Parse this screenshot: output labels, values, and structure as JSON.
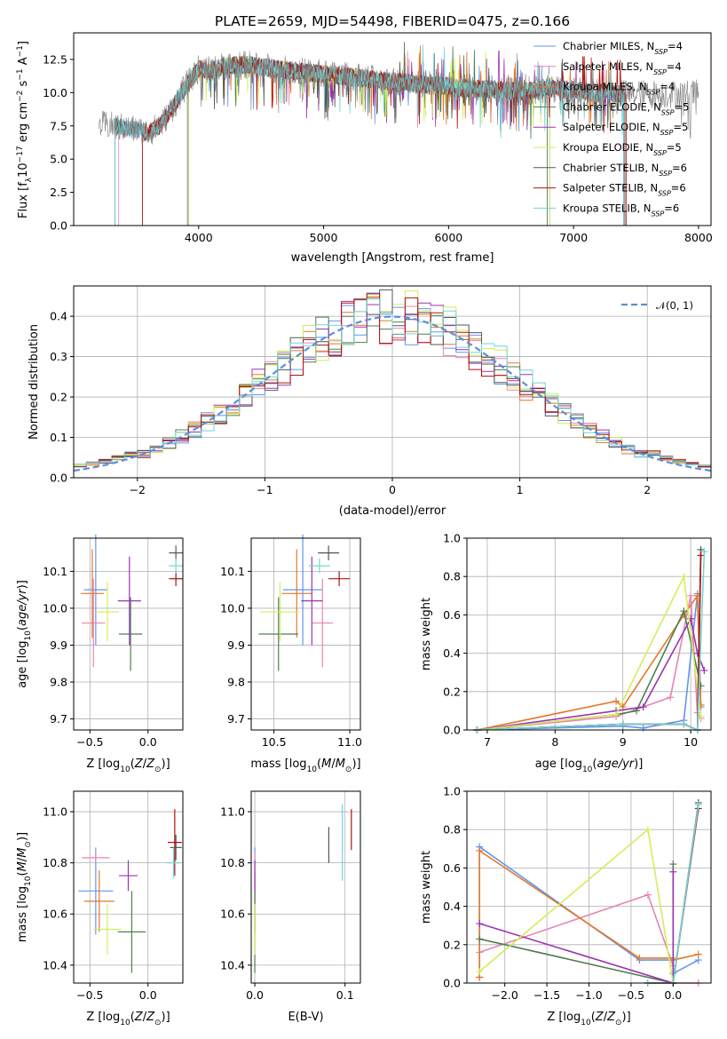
{
  "figure": {
    "title": "PLATE=2659, MJD=54498, FIBERID=0475, z=0.166"
  },
  "models": [
    {
      "name": "Chabrier MILES, N$_{SSP}$=4",
      "label": "Chabrier MILES, N",
      "sub": "SSP",
      "suffix": "=4",
      "color": "#6495ed"
    },
    {
      "name": "Salpeter MILES, N$_{SSP}$=4",
      "label": "Salpeter MILES, N",
      "sub": "SSP",
      "suffix": "=4",
      "color": "#e884b4"
    },
    {
      "name": "Kroupa MILES, N$_{SSP}$=4",
      "label": "Kroupa MILES, N",
      "sub": "SSP",
      "suffix": "=4",
      "color": "#e3782b"
    },
    {
      "name": "Chabrier ELODIE, N$_{SSP}$=5",
      "label": "Chabrier ELODIE, N",
      "sub": "SSP",
      "suffix": "=5",
      "color": "#4f7f4f"
    },
    {
      "name": "Salpeter ELODIE, N$_{SSP}$=5",
      "label": "Salpeter ELODIE, N",
      "sub": "SSP",
      "suffix": "=5",
      "color": "#9b34b4"
    },
    {
      "name": "Kroupa ELODIE, N$_{SSP}$=5",
      "label": "Kroupa ELODIE, N",
      "sub": "SSP",
      "suffix": "=5",
      "color": "#d2ee5a"
    },
    {
      "name": "Chabrier STELIB, N$_{SSP}$=6",
      "label": "Chabrier STELIB, N",
      "sub": "SSP",
      "suffix": "=6",
      "color": "#555555"
    },
    {
      "name": "Salpeter STELIB, N$_{SSP}$=6",
      "label": "Salpeter STELIB, N",
      "sub": "SSP",
      "suffix": "=6",
      "color": "#b01010"
    },
    {
      "name": "Kroupa STELIB, N$_{SSP}$=6",
      "label": "Kroupa STELIB, N",
      "sub": "SSP",
      "suffix": "=6",
      "color": "#6fd6d6"
    }
  ],
  "chart_data": [
    {
      "id": "spectrum",
      "type": "line",
      "xlabel": "wavelength [Angstrom, rest frame]",
      "ylabel": "Flux [f$_\\lambda$10$^{-17}$ erg cm$^{-2}$ s$^{-1}$ A$^{-1}$]",
      "ylabel_parts": [
        "Flux [f",
        "λ",
        "10",
        "−17",
        " erg cm",
        "−2",
        " s",
        "−1",
        " A",
        "−1",
        "]"
      ],
      "xlim": [
        3000,
        8100
      ],
      "ylim": [
        0,
        14.5
      ],
      "xticks": [
        4000,
        5000,
        6000,
        7000,
        8000
      ],
      "yticks": [
        0.0,
        2.5,
        5.0,
        7.5,
        10.0,
        12.5
      ],
      "ytick_labels": [
        "0.0",
        "2.5",
        "5.0",
        "7.5",
        "10.0",
        "12.5"
      ],
      "legend": "upper right",
      "continuum_knots": {
        "wavelength": [
          3200,
          3300,
          3500,
          3600,
          3700,
          3800,
          3900,
          4000,
          4100,
          4200,
          4400,
          4600,
          4800,
          5000,
          5200,
          5400,
          5600,
          5800,
          6000,
          6200,
          6400,
          6600,
          6800,
          7000,
          7200,
          7400
        ],
        "flux": [
          7.6,
          7.5,
          7.2,
          7.0,
          7.6,
          9.0,
          10.5,
          11.8,
          11.6,
          12.0,
          12.1,
          11.8,
          11.6,
          11.4,
          11.2,
          11.0,
          10.8,
          10.6,
          10.5,
          10.3,
          10.2,
          10.1,
          10.3,
          10.2,
          10.0,
          9.9
        ]
      },
      "data_extent": [
        3200,
        7400
      ],
      "observed_extent": [
        3200,
        8000
      ],
      "model_starts": [
        3330,
        3360,
        3550,
        3910,
        3920,
        3920,
        3330,
        3550,
        3330
      ],
      "model_ends": [
        6810,
        6790,
        7420,
        6790,
        7400,
        6810,
        7410,
        7420,
        7400
      ],
      "observed_color": "#808080"
    },
    {
      "id": "residuals",
      "type": "histogram",
      "xlabel": "(data-model)/error",
      "ylabel": "Normed distribution",
      "xlim": [
        -2.5,
        2.5
      ],
      "ylim": [
        0,
        0.475
      ],
      "xticks": [
        -2,
        -1,
        0,
        1,
        2
      ],
      "xtick_labels": [
        "−2",
        "−1",
        "0",
        "1",
        "2"
      ],
      "yticks": [
        0.0,
        0.1,
        0.2,
        0.3,
        0.4
      ],
      "ytick_labels": [
        "0.0",
        "0.1",
        "0.2",
        "0.3",
        "0.4"
      ],
      "bin_width": 0.1,
      "reference": {
        "name": "𝒩(0, 1)",
        "color": "#5b8fd9",
        "style": "dashed"
      },
      "legend": "upper right"
    },
    {
      "id": "age_vs_Z",
      "type": "errorbar",
      "xlabel": "Z [log$_{10}$(Z/Z$_\\odot$)]",
      "ylabel": "age  [log$_{10}$(age/yr)]",
      "xlim": [
        -0.64,
        0.3
      ],
      "ylim": [
        9.67,
        10.19
      ],
      "xticks": [
        -0.5,
        0.0
      ],
      "xtick_labels": [
        "−0.5",
        "0.0"
      ],
      "yticks": [
        9.7,
        9.8,
        9.9,
        10.0,
        10.1
      ],
      "ytick_labels": [
        "9.7",
        "9.8",
        "9.9",
        "10.0",
        "10.1"
      ],
      "points": [
        {
          "x": -0.45,
          "xerr": 0.1,
          "y": 10.05,
          "yerr": 0.15
        },
        {
          "x": -0.47,
          "xerr": 0.1,
          "y": 9.96,
          "yerr": 0.12
        },
        {
          "x": -0.48,
          "xerr": 0.1,
          "y": 10.04,
          "yerr": 0.12
        },
        {
          "x": -0.15,
          "xerr": 0.1,
          "y": 9.93,
          "yerr": 0.1
        },
        {
          "x": -0.16,
          "xerr": 0.1,
          "y": 10.02,
          "yerr": 0.12
        },
        {
          "x": -0.35,
          "xerr": 0.1,
          "y": 9.99,
          "yerr": 0.08
        },
        {
          "x": 0.24,
          "xerr": 0.06,
          "y": 10.15,
          "yerr": 0.02
        },
        {
          "x": 0.24,
          "xerr": 0.06,
          "y": 10.08,
          "yerr": 0.02
        },
        {
          "x": 0.24,
          "xerr": 0.06,
          "y": 10.115,
          "yerr": 0.02
        }
      ]
    },
    {
      "id": "age_vs_mass",
      "type": "errorbar",
      "xlabel": "mass [log$_{10}$(M/M$_\\odot$)]",
      "ylabel": "",
      "xlim": [
        10.35,
        11.07
      ],
      "ylim": [
        9.67,
        10.19
      ],
      "xticks": [
        10.5,
        11.0
      ],
      "xtick_labels": [
        "10.5",
        "11.0"
      ],
      "yticks": [
        9.7,
        9.8,
        9.9,
        10.0,
        10.1
      ],
      "ytick_labels": [
        "9.7",
        "9.8",
        "9.9",
        "10.0",
        "10.1"
      ],
      "points": [
        {
          "x": 10.69,
          "xerr": 0.13,
          "y": 10.05,
          "yerr": 0.15
        },
        {
          "x": 10.82,
          "xerr": 0.07,
          "y": 9.96,
          "yerr": 0.12
        },
        {
          "x": 10.65,
          "xerr": 0.1,
          "y": 10.04,
          "yerr": 0.12
        },
        {
          "x": 10.53,
          "xerr": 0.13,
          "y": 9.93,
          "yerr": 0.1
        },
        {
          "x": 10.75,
          "xerr": 0.07,
          "y": 10.02,
          "yerr": 0.12
        },
        {
          "x": 10.54,
          "xerr": 0.13,
          "y": 9.99,
          "yerr": 0.08
        },
        {
          "x": 10.86,
          "xerr": 0.07,
          "y": 10.15,
          "yerr": 0.02
        },
        {
          "x": 10.93,
          "xerr": 0.07,
          "y": 10.08,
          "yerr": 0.02
        },
        {
          "x": 10.8,
          "xerr": 0.07,
          "y": 10.115,
          "yerr": 0.02
        }
      ]
    },
    {
      "id": "weight_vs_age",
      "type": "line",
      "xlabel": "age  [log$_{10}$(age/yr)]",
      "ylabel": "mass weight",
      "xlim": [
        6.7,
        10.3
      ],
      "ylim": [
        0,
        1.0
      ],
      "xticks": [
        7,
        8,
        9,
        10
      ],
      "xtick_labels": [
        "7",
        "8",
        "9",
        "10"
      ],
      "yticks": [
        0.0,
        0.2,
        0.4,
        0.6,
        0.8,
        1.0
      ],
      "ytick_labels": [
        "0.0",
        "0.2",
        "0.4",
        "0.6",
        "0.8",
        "1.0"
      ],
      "series": [
        {
          "x": [
            6.85,
            9.0,
            9.3,
            9.9,
            10.1,
            10.15
          ],
          "y": [
            0.0,
            0.02,
            0.01,
            0.05,
            0.71,
            0.12
          ]
        },
        {
          "x": [
            6.85,
            8.9,
            9.7,
            10.0,
            10.1,
            10.15
          ],
          "y": [
            0.0,
            0.07,
            0.17,
            0.7,
            0.09,
            0.06
          ]
        },
        {
          "x": [
            6.85,
            8.9,
            9.0,
            9.9,
            10.1,
            10.15
          ],
          "y": [
            0.0,
            0.15,
            0.12,
            0.6,
            0.7,
            0.13
          ]
        },
        {
          "x": [
            6.85,
            8.9,
            9.2,
            9.9,
            10.15
          ],
          "y": [
            0.0,
            0.08,
            0.1,
            0.62,
            0.23
          ]
        },
        {
          "x": [
            6.85,
            8.9,
            9.3,
            10.0,
            10.1,
            10.2
          ],
          "y": [
            0.0,
            0.1,
            0.12,
            0.58,
            0.4,
            0.31
          ]
        },
        {
          "x": [
            6.85,
            8.9,
            9.9,
            10.15
          ],
          "y": [
            0.0,
            0.08,
            0.8,
            0.07
          ]
        },
        {
          "x": [
            6.85,
            9.0,
            9.9,
            10.1,
            10.15
          ],
          "y": [
            0.0,
            0.03,
            0.03,
            0.0,
            0.94
          ]
        },
        {
          "x": [
            6.85,
            9.0,
            9.9,
            10.1,
            10.15
          ],
          "y": [
            0.0,
            0.03,
            0.03,
            0.0,
            0.91
          ]
        },
        {
          "x": [
            6.85,
            9.0,
            9.9,
            10.1,
            10.2
          ],
          "y": [
            0.0,
            0.03,
            0.03,
            0.0,
            0.93
          ]
        }
      ]
    },
    {
      "id": "mass_vs_Z",
      "type": "errorbar",
      "xlabel": "Z [log$_{10}$(Z/Z$_\\odot$)]",
      "ylabel": "mass [log$_{10}$(M/M$_\\odot$)]",
      "xlim": [
        -0.64,
        0.3
      ],
      "ylim": [
        10.33,
        11.08
      ],
      "xticks": [
        -0.5,
        0.0
      ],
      "xtick_labels": [
        "−0.5",
        "0.0"
      ],
      "yticks": [
        10.4,
        10.6,
        10.8,
        11.0
      ],
      "ytick_labels": [
        "10.4",
        "10.6",
        "10.8",
        "11.0"
      ],
      "points": [
        {
          "x": -0.45,
          "xerr": 0.15,
          "y": 10.69,
          "yerr": 0.17
        },
        {
          "x": -0.45,
          "xerr": 0.12,
          "y": 10.82,
          "yerr": 0.02
        },
        {
          "x": -0.42,
          "xerr": 0.13,
          "y": 10.65,
          "yerr": 0.12
        },
        {
          "x": -0.14,
          "xerr": 0.12,
          "y": 10.53,
          "yerr": 0.16
        },
        {
          "x": -0.17,
          "xerr": 0.08,
          "y": 10.75,
          "yerr": 0.06
        },
        {
          "x": -0.35,
          "xerr": 0.12,
          "y": 10.54,
          "yerr": 0.1
        },
        {
          "x": 0.24,
          "xerr": 0.05,
          "y": 10.86,
          "yerr": 0.05
        },
        {
          "x": 0.23,
          "xerr": 0.06,
          "y": 10.88,
          "yerr": 0.13
        },
        {
          "x": 0.22,
          "xerr": 0.06,
          "y": 10.8,
          "yerr": 0.06
        }
      ]
    },
    {
      "id": "mass_vs_ebv",
      "type": "errorbar",
      "xlabel": "E(B-V)",
      "ylabel": "",
      "xlim": [
        -0.004,
        0.117
      ],
      "ylim": [
        10.33,
        11.08
      ],
      "xticks": [
        0.0,
        0.1
      ],
      "xtick_labels": [
        "0.0",
        "0.1"
      ],
      "yticks": [
        10.4,
        10.6,
        10.8,
        11.0
      ],
      "ytick_labels": [
        "10.4",
        "10.6",
        "10.8",
        "11.0"
      ],
      "points": [
        {
          "x": 0.0,
          "xerr": 0,
          "y": 10.69,
          "yerr": 0.17
        },
        {
          "x": 0.0,
          "xerr": 0,
          "y": 10.82,
          "yerr": 0.02
        },
        {
          "x": 0.0,
          "xerr": 0,
          "y": 10.65,
          "yerr": 0.12
        },
        {
          "x": 0.0,
          "xerr": 0,
          "y": 10.53,
          "yerr": 0.16
        },
        {
          "x": 0.0,
          "xerr": 0,
          "y": 10.75,
          "yerr": 0.06
        },
        {
          "x": 0.0,
          "xerr": 0,
          "y": 10.54,
          "yerr": 0.1
        },
        {
          "x": 0.082,
          "xerr": 0,
          "y": 10.87,
          "yerr": 0.07
        },
        {
          "x": 0.107,
          "xerr": 0,
          "y": 10.93,
          "yerr": 0.08
        },
        {
          "x": 0.097,
          "xerr": 0,
          "y": 10.88,
          "yerr": 0.15
        }
      ]
    },
    {
      "id": "weight_vs_Z",
      "type": "line",
      "xlabel": "Z [log$_{10}$(Z/Z$_\\odot$)]",
      "ylabel": "mass weight",
      "xlim": [
        -2.45,
        0.45
      ],
      "ylim": [
        0,
        1.0
      ],
      "xticks": [
        -2.0,
        -1.5,
        -1.0,
        -0.5,
        0.0
      ],
      "xtick_labels": [
        "−2.0",
        "−1.5",
        "−1.0",
        "−0.5",
        "0.0"
      ],
      "yticks": [
        0.0,
        0.2,
        0.4,
        0.6,
        0.8,
        1.0
      ],
      "ytick_labels": [
        "0.0",
        "0.2",
        "0.4",
        "0.6",
        "0.8",
        "1.0"
      ],
      "series": [
        {
          "x": [
            -2.3,
            -2.3,
            -0.4,
            0.0,
            0.0,
            0.3
          ],
          "y": [
            0.03,
            0.71,
            0.12,
            0.12,
            0.05,
            0.12
          ]
        },
        {
          "x": [
            -2.3,
            -0.3,
            0.0,
            0.0,
            0.3
          ],
          "y": [
            0.16,
            0.46,
            0.09,
            0.0,
            0.0
          ]
        },
        {
          "x": [
            -2.3,
            -2.3,
            -0.4,
            0.0,
            0.0,
            0.3
          ],
          "y": [
            0.03,
            0.69,
            0.13,
            0.13,
            0.12,
            0.15
          ]
        },
        {
          "x": [
            -2.3,
            0.0,
            0.0,
            0.0
          ],
          "y": [
            0.23,
            0.0,
            0.62,
            0.0
          ]
        },
        {
          "x": [
            -2.3,
            0.0,
            0.0,
            0.0
          ],
          "y": [
            0.31,
            0.0,
            0.58,
            0.0
          ]
        },
        {
          "x": [
            -2.3,
            -0.3,
            0.0,
            0.0
          ],
          "y": [
            0.06,
            0.8,
            0.0,
            0.0
          ]
        },
        {
          "x": [
            -0.3,
            0.0,
            0.3
          ],
          "y": [
            0.0,
            0.0,
            0.94
          ]
        },
        {
          "x": [
            -0.3,
            0.0,
            0.3
          ],
          "y": [
            0.0,
            0.0,
            0.91
          ]
        },
        {
          "x": [
            -0.3,
            0.0,
            0.3
          ],
          "y": [
            0.0,
            0.0,
            0.93
          ]
        }
      ]
    }
  ]
}
